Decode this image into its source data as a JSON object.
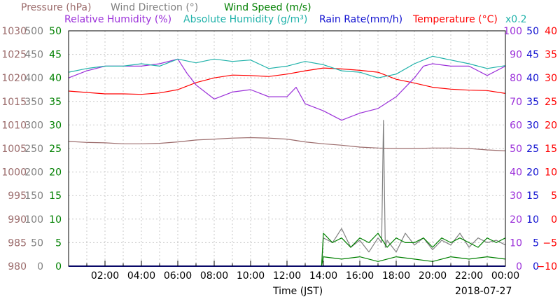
{
  "chart_data": {
    "type": "line",
    "title": "",
    "date": "2018-07-27",
    "xlabel": "Time (JST)",
    "x_ticks": [
      "02:00",
      "04:00",
      "06:00",
      "08:00",
      "10:00",
      "12:00",
      "14:00",
      "16:00",
      "18:00",
      "20:00",
      "22:00",
      "00:00"
    ],
    "x_unit": "hours",
    "xlim": [
      0,
      24
    ],
    "legend": [
      {
        "text": "Pressure (hPa)",
        "color": "#9b6b6b"
      },
      {
        "text": "Wind Direction (°)",
        "color": "#808080"
      },
      {
        "text": "Wind Speed (m/s)",
        "color": "#008000"
      },
      {
        "text": "Relative Humidity (%)",
        "color": "#9b30d9"
      },
      {
        "text": "Absolute Humidity (g/m³)",
        "color": "#20b2aa"
      },
      {
        "text": "Rain Rate(mm/h)",
        "color": "#1010d0"
      },
      {
        "text": "Temperature (°C)",
        "color": "#ff0000"
      },
      {
        "text": "x0.2",
        "color": "#20b2aa"
      }
    ],
    "axes": {
      "pressure": {
        "ticks": [
          "1030",
          "1025",
          "1020",
          "1015",
          "1010",
          "1005",
          "1000",
          "995",
          "990",
          "985",
          "980"
        ],
        "range": [
          980,
          1030
        ],
        "color": "#9b6b6b"
      },
      "wind_direction": {
        "ticks": [
          "500",
          "450",
          "400",
          "350",
          "300",
          "250",
          "200",
          "150",
          "100",
          "50",
          "0"
        ],
        "range": [
          0,
          500
        ],
        "color": "#808080"
      },
      "wind_speed": {
        "ticks": [
          "50",
          "45",
          "40",
          "35",
          "30",
          "25",
          "20",
          "15",
          "10",
          "5",
          "0"
        ],
        "range": [
          0,
          50
        ],
        "color": "#008000"
      },
      "humidity": {
        "ticks": [
          "100",
          "90",
          "80",
          "70",
          "60",
          "50",
          "40",
          "30",
          "20",
          "10",
          "0"
        ],
        "range": [
          0,
          100
        ],
        "color": "#9b30d9"
      },
      "rain_rate": {
        "ticks": [
          "50",
          "45",
          "40",
          "35",
          "30",
          "25",
          "20",
          "15",
          "10",
          "5",
          "0"
        ],
        "range": [
          0,
          50
        ],
        "color": "#1010d0"
      },
      "temperature": {
        "ticks": [
          "40",
          "35",
          "30",
          "25",
          "20",
          "15",
          "10",
          "5",
          "0",
          "−5",
          "−10"
        ],
        "range": [
          -10,
          40
        ],
        "color": "#ff0000"
      }
    },
    "series": [
      {
        "name": "Pressure (hPa)",
        "color": "#9b6b6b",
        "axis": "pressure",
        "x": [
          0,
          1,
          2,
          3,
          4,
          5,
          6,
          7,
          8,
          9,
          10,
          11,
          12,
          13,
          14,
          15,
          16,
          17,
          18,
          19,
          20,
          21,
          22,
          23,
          24
        ],
        "y": [
          1006.5,
          1006.3,
          1006.2,
          1006.0,
          1006.0,
          1006.1,
          1006.4,
          1006.8,
          1007.0,
          1007.2,
          1007.3,
          1007.2,
          1007.0,
          1006.4,
          1006.0,
          1005.7,
          1005.3,
          1005.1,
          1005.0,
          1005.0,
          1005.1,
          1005.1,
          1005.0,
          1004.7,
          1004.5
        ]
      },
      {
        "name": "Temperature (°C)",
        "color": "#ff0000",
        "axis": "temperature",
        "x": [
          0,
          1,
          2,
          3,
          4,
          5,
          6,
          7,
          8,
          9,
          10,
          11,
          12,
          13,
          14,
          15,
          16,
          17,
          18,
          19,
          20,
          21,
          22,
          23,
          24
        ],
        "y": [
          27.2,
          26.9,
          26.6,
          26.6,
          26.5,
          26.8,
          27.5,
          29.0,
          30.0,
          30.6,
          30.5,
          30.3,
          30.8,
          31.5,
          32.1,
          31.9,
          31.6,
          31.2,
          29.7,
          28.9,
          28.0,
          27.6,
          27.4,
          27.3,
          26.7
        ]
      },
      {
        "name": "Relative Humidity (%)",
        "color": "#9b30d9",
        "axis": "humidity",
        "x": [
          0,
          1,
          2,
          3,
          4,
          5,
          6,
          6.5,
          7,
          8,
          9,
          10,
          11,
          12,
          12.5,
          13,
          14,
          15,
          16,
          17,
          18,
          19,
          19.5,
          20,
          21,
          22,
          23,
          24
        ],
        "y": [
          80,
          83,
          85,
          85,
          85,
          86,
          88,
          82,
          77,
          71,
          74,
          75,
          72,
          72,
          76,
          69,
          66,
          62,
          65,
          67,
          72,
          80,
          85,
          86,
          85,
          85,
          81,
          85
        ]
      },
      {
        "name": "Absolute Humidity (g/m³)",
        "color": "#20b2aa",
        "axis": "wind_speed",
        "x": [
          0,
          1,
          2,
          3,
          4,
          5,
          6,
          7,
          8,
          9,
          10,
          11,
          12,
          13,
          14,
          15,
          16,
          17,
          18,
          19,
          20,
          21,
          22,
          23,
          24
        ],
        "y": [
          41.2,
          42.0,
          42.5,
          42.5,
          43.0,
          42.5,
          44.0,
          43.2,
          44.0,
          43.5,
          43.8,
          42.0,
          42.5,
          43.5,
          42.8,
          41.5,
          41.2,
          40.0,
          40.8,
          43.0,
          44.6,
          43.8,
          43.0,
          42.0,
          42.6
        ]
      },
      {
        "name": "Wind Direction (°)",
        "color": "#808080",
        "axis": "wind_direction",
        "x": [
          13.9,
          14,
          14.5,
          15,
          15.5,
          16,
          16.5,
          17,
          17.2,
          17.3,
          17.4,
          17.5,
          18,
          18.5,
          19,
          19.5,
          20,
          20.5,
          21,
          21.5,
          22,
          22.5,
          23,
          23.5,
          24
        ],
        "y": [
          0,
          60,
          50,
          80,
          40,
          55,
          30,
          60,
          50,
          310,
          40,
          55,
          30,
          70,
          45,
          60,
          35,
          55,
          45,
          70,
          40,
          60,
          50,
          55,
          45
        ]
      },
      {
        "name": "Wind Speed (m/s)",
        "color": "#008000",
        "axis": "wind_speed",
        "x": [
          13.9,
          14,
          14.5,
          15,
          15.5,
          16,
          16.5,
          17,
          17.5,
          18,
          18.5,
          19,
          19.5,
          20,
          20.5,
          21,
          21.5,
          22,
          22.5,
          23,
          23.5,
          24
        ],
        "y": [
          0,
          7,
          5,
          6,
          4,
          6,
          5,
          7,
          4,
          6,
          5,
          5,
          6,
          4,
          6,
          5,
          6,
          5,
          4,
          6,
          5,
          6
        ]
      },
      {
        "name": "Wind Speed Low (m/s)",
        "color": "#008000",
        "axis": "wind_speed",
        "x": [
          13.9,
          14,
          15,
          16,
          17,
          18,
          19,
          20,
          21,
          22,
          23,
          24
        ],
        "y": [
          0,
          2,
          1.5,
          2,
          1,
          2,
          1.5,
          1,
          2,
          1.5,
          2,
          1.5
        ]
      },
      {
        "name": "Rain Rate(mm/h)",
        "color": "#1010d0",
        "axis": "rain_rate",
        "x": [
          0,
          24
        ],
        "y": [
          0,
          0
        ]
      }
    ],
    "grid": true
  }
}
